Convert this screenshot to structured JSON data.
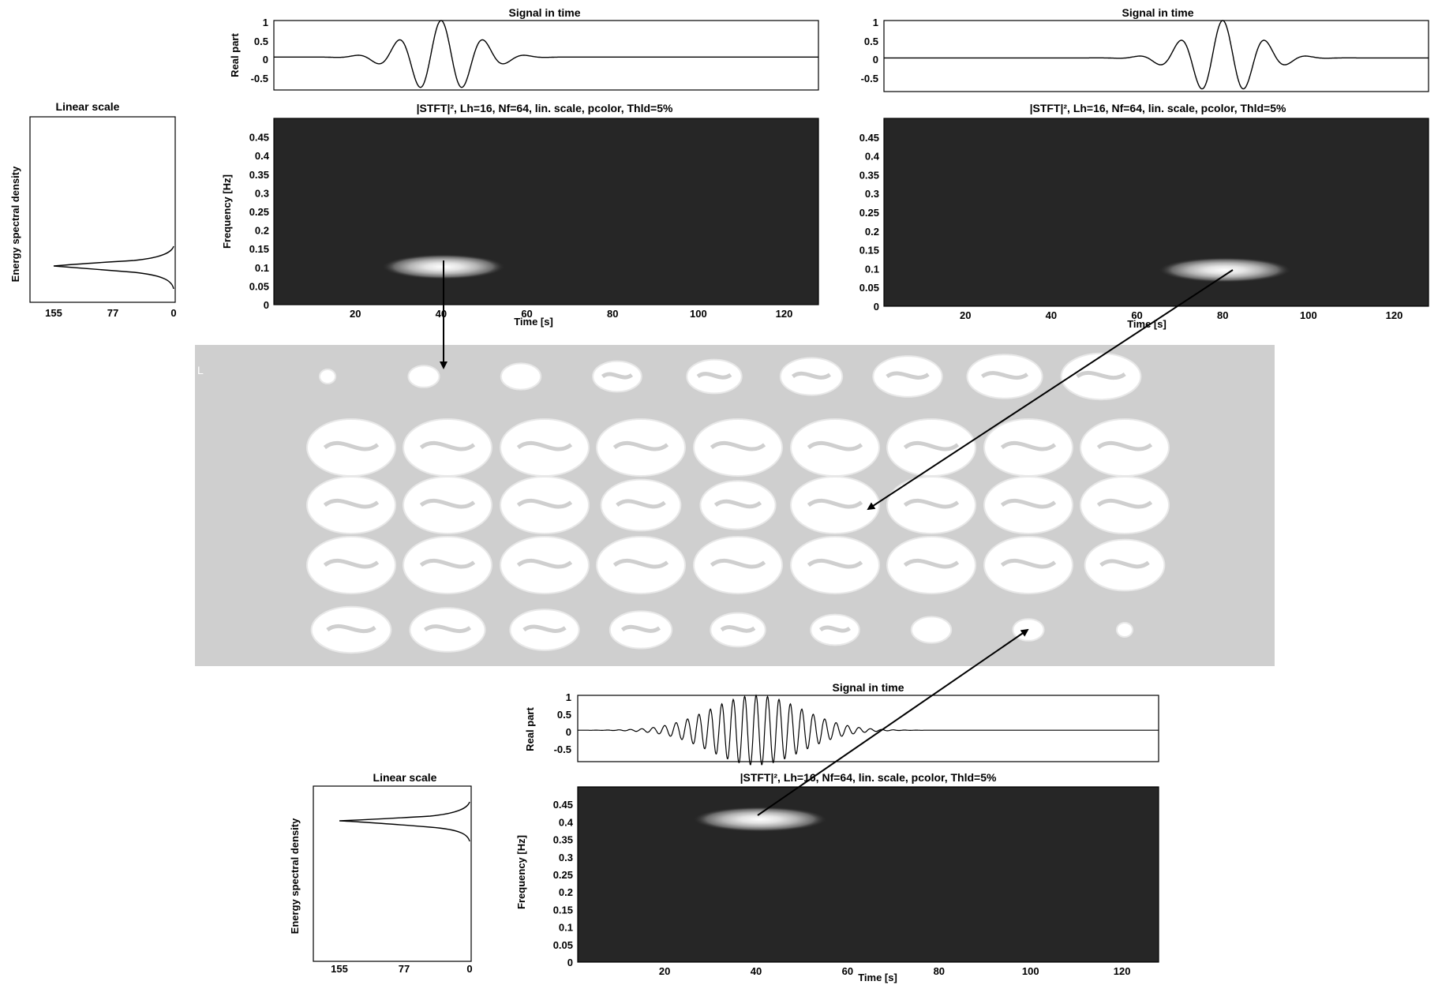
{
  "panels": {
    "top_left": {
      "spectrum": {
        "title": "Linear scale",
        "ylabel": "Energy spectral density",
        "xticks": [
          "155",
          "77",
          "0"
        ]
      },
      "signal": {
        "title": "Signal in time",
        "ylabel": "Real part",
        "yticks": [
          "1",
          "0.5",
          "0",
          "-0.5"
        ]
      },
      "stft": {
        "title": "|STFT|², Lh=16, Nf=64, lin. scale, pcolor, Thld=5%",
        "ylabel": "Frequency [Hz]",
        "xlabel": "Time [s]",
        "yticks": [
          "0.45",
          "0.4",
          "0.35",
          "0.3",
          "0.25",
          "0.2",
          "0.15",
          "0.1",
          "0.05",
          "0"
        ],
        "xticks": [
          "20",
          "40",
          "60",
          "80",
          "100",
          "120"
        ]
      }
    },
    "top_right": {
      "signal": {
        "title": "Signal in time",
        "yticks": [
          "1",
          "0.5",
          "0",
          "-0.5"
        ]
      },
      "stft": {
        "title": "|STFT|², Lh=16, Nf=64, lin. scale, pcolor, Thld=5%",
        "xlabel": "Time [s]",
        "yticks": [
          "0.45",
          "0.4",
          "0.35",
          "0.3",
          "0.25",
          "0.2",
          "0.15",
          "0.1",
          "0.05",
          "0"
        ],
        "xticks": [
          "20",
          "40",
          "60",
          "80",
          "100",
          "120"
        ]
      }
    },
    "bottom": {
      "spectrum": {
        "title": "Linear scale",
        "ylabel": "Energy spectral density",
        "xticks": [
          "155",
          "77",
          "0"
        ]
      },
      "signal": {
        "title": "Signal in time",
        "ylabel": "Real part",
        "yticks": [
          "1",
          "0.5",
          "0",
          "-0.5"
        ]
      },
      "stft": {
        "title": "|STFT|², Lh=16, Nf=64, lin. scale, pcolor, Thld=5%",
        "ylabel": "Frequency [Hz]",
        "xlabel": "Time [s]",
        "yticks": [
          "0.45",
          "0.4",
          "0.35",
          "0.3",
          "0.25",
          "0.2",
          "0.15",
          "0.1",
          "0.05",
          "0"
        ],
        "xticks": [
          "20",
          "40",
          "60",
          "80",
          "100",
          "120"
        ]
      }
    }
  },
  "brain_montage": {
    "corner_label": "L"
  },
  "chart_data": [
    {
      "type": "line",
      "title": "Signal in time",
      "ylabel": "Real part",
      "xlim": [
        1,
        128
      ],
      "ylim": [
        -0.9,
        1
      ],
      "series": [
        {
          "signal": "gaussian-modulated",
          "center_s": 40,
          "frequency_hz": 0.1
        }
      ]
    },
    {
      "type": "heatmap",
      "title": "|STFT|², Lh=16, Nf=64, lin. scale, pcolor, Thld=5%",
      "xlabel": "Time [s]",
      "ylabel": "Frequency [Hz]",
      "xlim": [
        1,
        128
      ],
      "ylim": [
        0,
        0.5
      ],
      "peak": {
        "time_s": 40,
        "frequency_hz": 0.1
      }
    },
    {
      "type": "line",
      "title": "Linear scale",
      "ylabel": "Energy spectral density",
      "xlim": [
        155,
        0
      ],
      "peak": {
        "value": 155,
        "frequency_hz": 0.1
      }
    },
    {
      "type": "line",
      "title": "Signal in time",
      "xlim": [
        1,
        128
      ],
      "ylim": [
        -0.9,
        1
      ],
      "series": [
        {
          "signal": "gaussian-modulated",
          "center_s": 80,
          "frequency_hz": 0.1
        }
      ]
    },
    {
      "type": "heatmap",
      "title": "|STFT|², Lh=16, Nf=64, lin. scale, pcolor, Thld=5%",
      "xlabel": "Time [s]",
      "xlim": [
        1,
        128
      ],
      "ylim": [
        0,
        0.5
      ],
      "peak": {
        "time_s": 80,
        "frequency_hz": 0.1
      }
    },
    {
      "type": "line",
      "title": "Signal in time",
      "ylabel": "Real part",
      "xlim": [
        1,
        128
      ],
      "ylim": [
        -0.9,
        1
      ],
      "series": [
        {
          "signal": "gaussian-modulated",
          "center_s": 40,
          "frequency_hz": 0.4
        }
      ]
    },
    {
      "type": "heatmap",
      "title": "|STFT|², Lh=16, Nf=64, lin. scale, pcolor, Thld=5%",
      "xlabel": "Time [s]",
      "ylabel": "Frequency [Hz]",
      "xlim": [
        1,
        128
      ],
      "ylim": [
        0,
        0.5
      ],
      "peak": {
        "time_s": 40,
        "frequency_hz": 0.4
      }
    },
    {
      "type": "line",
      "title": "Linear scale",
      "ylabel": "Energy spectral density",
      "xlim": [
        155,
        0
      ],
      "peak": {
        "value": 155,
        "frequency_hz": 0.4
      }
    }
  ]
}
